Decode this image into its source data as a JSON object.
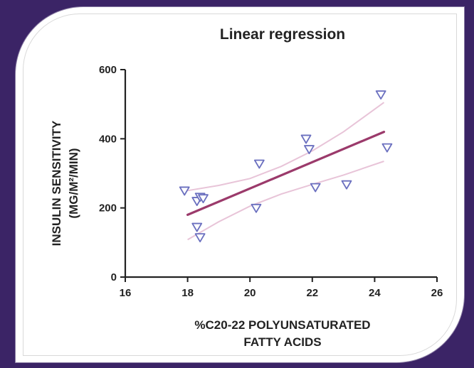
{
  "chart_data": {
    "type": "scatter",
    "title": "Linear regression",
    "xlabel_lines": [
      "%C20-22 POLYUNSATURATED",
      "FATTY ACIDS"
    ],
    "ylabel_lines": [
      "INSULIN SENSITIVITY",
      "(MG/M²/MIN)"
    ],
    "xlim": [
      16,
      26
    ],
    "ylim": [
      0,
      600
    ],
    "x_ticks": [
      16,
      18,
      20,
      22,
      24,
      26
    ],
    "y_ticks": [
      0,
      200,
      400,
      600
    ],
    "grid": false,
    "marker": "down-triangle",
    "points": [
      {
        "x": 17.9,
        "y": 250
      },
      {
        "x": 18.3,
        "y": 220
      },
      {
        "x": 18.4,
        "y": 232
      },
      {
        "x": 18.5,
        "y": 228
      },
      {
        "x": 18.3,
        "y": 145
      },
      {
        "x": 18.4,
        "y": 115
      },
      {
        "x": 20.2,
        "y": 200
      },
      {
        "x": 20.3,
        "y": 328
      },
      {
        "x": 21.8,
        "y": 400
      },
      {
        "x": 21.9,
        "y": 370
      },
      {
        "x": 22.1,
        "y": 260
      },
      {
        "x": 23.1,
        "y": 268
      },
      {
        "x": 24.2,
        "y": 528
      },
      {
        "x": 24.4,
        "y": 375
      }
    ],
    "regression_line": {
      "x": [
        18.0,
        24.3
      ],
      "y": [
        180,
        420
      ]
    },
    "confidence_band": {
      "x": [
        18.0,
        19.0,
        20.0,
        21.0,
        22.0,
        23.0,
        24.3
      ],
      "upper": [
        250,
        265,
        285,
        320,
        365,
        420,
        505
      ],
      "lower": [
        108,
        160,
        205,
        240,
        268,
        295,
        335
      ]
    },
    "colors": {
      "regression": "#9b3a6b",
      "band": "#e8c4d8",
      "marker": "#6a6fbf",
      "axis": "#222222"
    }
  }
}
